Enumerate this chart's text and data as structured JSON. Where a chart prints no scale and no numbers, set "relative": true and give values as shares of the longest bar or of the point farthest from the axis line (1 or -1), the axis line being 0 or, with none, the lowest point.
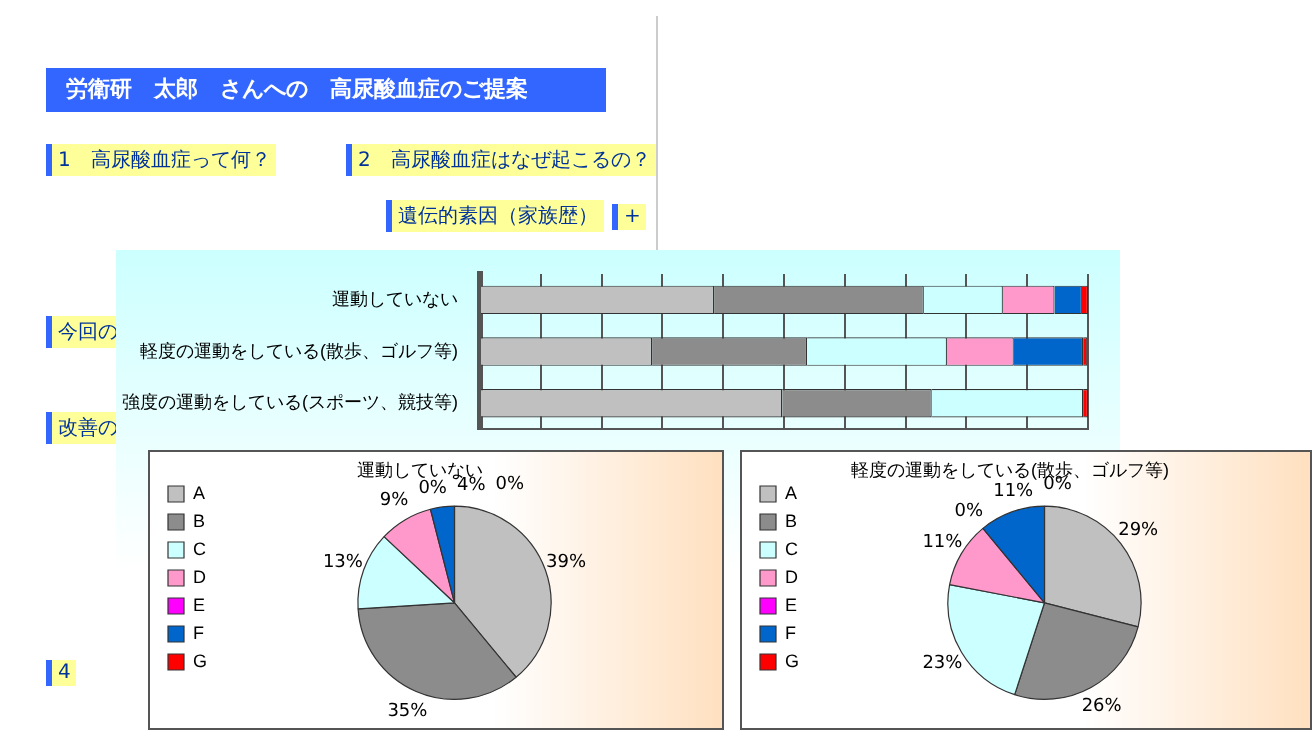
{
  "chart_data": [
    {
      "type": "other",
      "title": "労衛研　太郎　さんへの　高尿酸血症のご提案",
      "annotations": [
        "1　高尿酸血症って何？",
        "2　高尿酸血症はなぜ起こるの？",
        "遺伝的素因（家族歴）",
        "+",
        "今回の",
        "改善の",
        "4"
      ]
    },
    {
      "type": "bar",
      "orientation": "horizontal",
      "stacked": true,
      "relative": true,
      "grid": "x",
      "tick_labels": "y",
      "legend": false,
      "categories": [
        "運動していない",
        "軽度の運動をしている(散歩、ゴルフ等)",
        "強度の運動をしている(スポーツ、競技等)"
      ],
      "series": [
        {
          "color": "#c0c0c0",
          "values": [
            0.385,
            0.283,
            0.497
          ]
        },
        {
          "color": "#8c8c8c",
          "values": [
            0.345,
            0.255,
            0.246
          ]
        },
        {
          "color": "#ccffff",
          "values": [
            0.13,
            0.23,
            0.249
          ]
        },
        {
          "color": "#ff99cc",
          "values": [
            0.085,
            0.11,
            0
          ]
        },
        {
          "color": "#ff00ff",
          "values": [
            0,
            0,
            0
          ]
        },
        {
          "color": "#0066cc",
          "values": [
            0.045,
            0.114,
            0
          ]
        },
        {
          "color": "#ff0000",
          "values": [
            0.01,
            0.007,
            0.008
          ]
        }
      ]
    },
    {
      "type": "pie",
      "title": "運動していない",
      "legend": "left",
      "categories": [
        "A",
        "B",
        "C",
        "D",
        "E",
        "F",
        "G"
      ],
      "values": [
        39,
        35,
        13,
        9,
        0,
        4,
        0
      ],
      "value_labels": [
        "39%",
        "35%",
        "13%",
        "9%",
        "0%",
        "4%",
        "0%"
      ],
      "colors": [
        "#c0c0c0",
        "#8c8c8c",
        "#ccffff",
        "#ff99cc",
        "#ff00ff",
        "#0066cc",
        "#ff0000"
      ]
    },
    {
      "type": "pie",
      "title": "軽度の運動をしている(散歩、ゴルフ等)",
      "legend": "left",
      "categories": [
        "A",
        "B",
        "C",
        "D",
        "E",
        "F",
        "G"
      ],
      "values": [
        29,
        26,
        23,
        11,
        0,
        11,
        0
      ],
      "value_labels": [
        "29%",
        "26%",
        "23%",
        "11%",
        "0%",
        "11%",
        "0%"
      ],
      "colors": [
        "#c0c0c0",
        "#8c8c8c",
        "#ccffff",
        "#ff99cc",
        "#ff00ff",
        "#0066cc",
        "#ff0000"
      ]
    }
  ]
}
